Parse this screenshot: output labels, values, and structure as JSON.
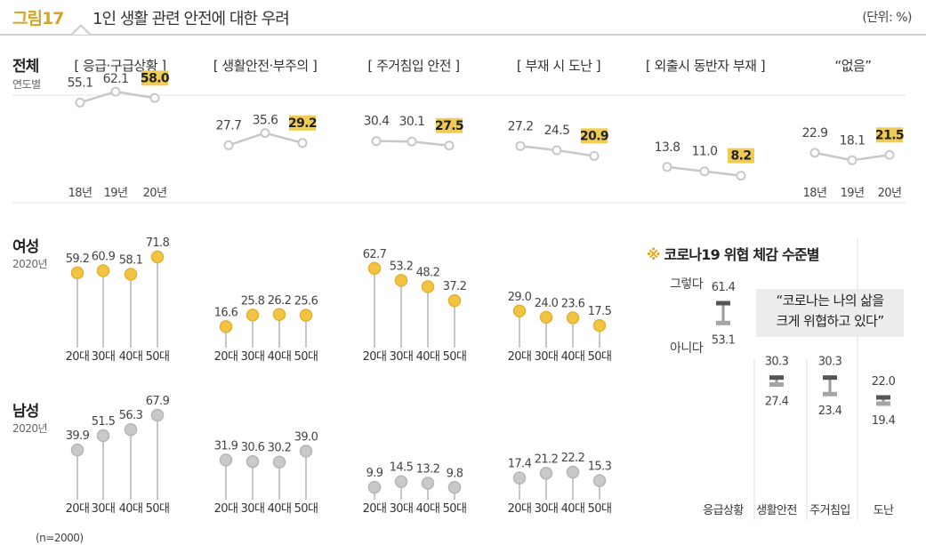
{
  "header": {
    "figure_label": "그림17",
    "title": "1인 생활 관련 안전에 대한 우려",
    "unit": "(단위: %)"
  },
  "rows": {
    "total": {
      "label": "전체",
      "sub": "연도별"
    },
    "female": {
      "label": "여성",
      "sub": "2020년"
    },
    "male": {
      "label": "남성",
      "sub": "2020년"
    }
  },
  "categories": [
    "[ 응급·구급상황 ]",
    "[ 생활안전·부주의 ]",
    "[ 주거침입 안전 ]",
    "[ 부재 시 도난 ]",
    "[ 외출시 동반자 부재 ]",
    "“없음”"
  ],
  "colors": {
    "highlight": "#f0cc55",
    "line": "#c8c8c8",
    "female_dot": "#f2c442",
    "male_dot": "#c9c9c9",
    "accent": "#d4a52a"
  },
  "covid": {
    "title_mark": "※",
    "title": "코로나19 위협 체감 수준별",
    "quote_line1": "“코로나는 나의 삶을",
    "quote_line2": "크게 위협하고 있다”",
    "legend_yes": "그렇다",
    "legend_no": "아니다"
  },
  "footnote": "(n=2000)",
  "chart_data": [
    {
      "type": "line",
      "title": "전체 (연도별)",
      "categories": [
        "18년",
        "19년",
        "20년"
      ],
      "series": [
        {
          "name": "응급·구급상황",
          "values": [
            55.1,
            62.1,
            58.0
          ]
        },
        {
          "name": "생활안전·부주의",
          "values": [
            27.7,
            35.6,
            29.2
          ]
        },
        {
          "name": "주거침입 안전",
          "values": [
            30.4,
            30.1,
            27.5
          ]
        },
        {
          "name": "부재 시 도난",
          "values": [
            27.2,
            24.5,
            20.9
          ]
        },
        {
          "name": "외출시 동반자 부재",
          "values": [
            13.8,
            11.0,
            8.2
          ]
        },
        {
          "name": "없음",
          "values": [
            22.9,
            18.1,
            21.5
          ]
        }
      ]
    },
    {
      "type": "scatter",
      "title": "여성 2020년",
      "categories": [
        "20대",
        "30대",
        "40대",
        "50대"
      ],
      "series": [
        {
          "name": "응급·구급상황",
          "values": [
            59.2,
            60.9,
            58.1,
            71.8
          ]
        },
        {
          "name": "생활안전·부주의",
          "values": [
            16.6,
            25.8,
            26.2,
            25.6
          ]
        },
        {
          "name": "주거침입 안전",
          "values": [
            62.7,
            53.2,
            48.2,
            37.2
          ]
        },
        {
          "name": "부재 시 도난",
          "values": [
            29.0,
            24.0,
            23.6,
            17.5
          ]
        }
      ]
    },
    {
      "type": "scatter",
      "title": "남성 2020년",
      "categories": [
        "20대",
        "30대",
        "40대",
        "50대"
      ],
      "series": [
        {
          "name": "응급·구급상황",
          "values": [
            39.9,
            51.5,
            56.3,
            67.9
          ]
        },
        {
          "name": "생활안전·부주의",
          "values": [
            31.9,
            30.6,
            30.2,
            39.0
          ]
        },
        {
          "name": "주거침입 안전",
          "values": [
            9.9,
            14.5,
            13.2,
            9.8
          ]
        },
        {
          "name": "부재 시 도난",
          "values": [
            17.4,
            21.2,
            22.2,
            15.3
          ]
        }
      ]
    },
    {
      "type": "bar",
      "title": "코로나19 위협 체감 수준별",
      "categories": [
        "응급상황",
        "생활안전",
        "주거침입",
        "도난"
      ],
      "series": [
        {
          "name": "그렇다",
          "values": [
            61.4,
            30.3,
            30.3,
            22.0
          ]
        },
        {
          "name": "아니다",
          "values": [
            53.1,
            27.4,
            23.4,
            19.4
          ]
        }
      ]
    }
  ]
}
